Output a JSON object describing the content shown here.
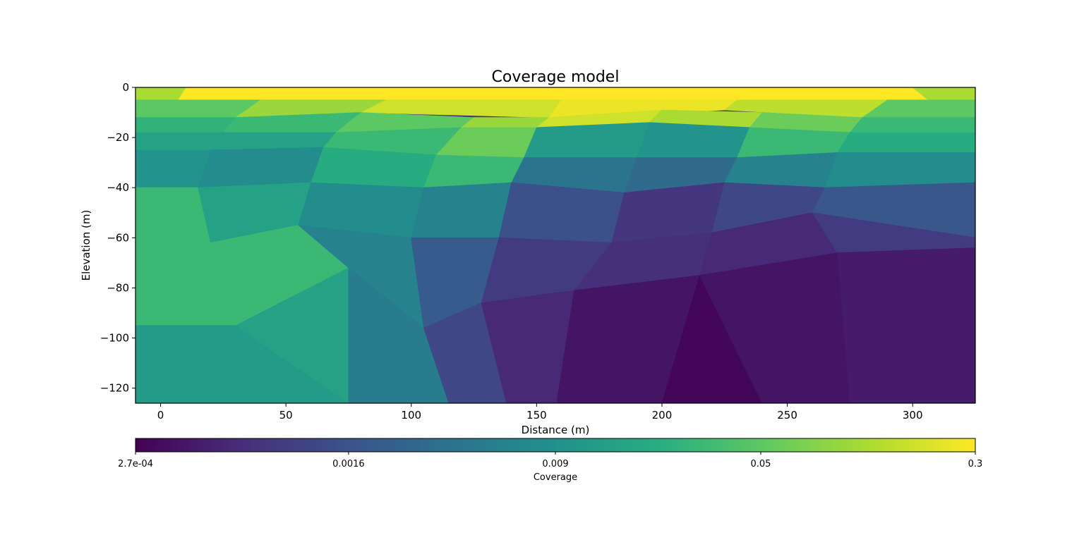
{
  "chart_data": {
    "type": "heatmap",
    "title": "Coverage model",
    "xlabel": "Distance (m)",
    "ylabel": "Elevation (m)",
    "xlim": [
      -10,
      325
    ],
    "ylim": [
      -126,
      0
    ],
    "x_ticks": [
      0,
      50,
      100,
      150,
      200,
      250,
      300
    ],
    "y_ticks": [
      0,
      -20,
      -40,
      -60,
      -80,
      -100,
      -120
    ],
    "y_tick_labels": [
      "0",
      "−20",
      "−40",
      "−60",
      "−80",
      "−100",
      "−120"
    ],
    "grid": false,
    "colormap": "viridis",
    "colorbar": {
      "label": "Coverage",
      "scale": "log",
      "range": [
        0.00027,
        0.3
      ],
      "ticks": [
        0.00027,
        0.0016,
        0.009,
        0.05,
        0.3
      ],
      "tick_labels": [
        "2.7e-04",
        "0.0016",
        "0.009",
        "0.05",
        "0.3"
      ],
      "orientation": "horizontal",
      "placement": "bottom"
    },
    "cells": [
      {
        "x": [
          -10,
          325,
          325,
          -10
        ],
        "y": [
          0,
          0,
          -5,
          -5
        ],
        "value": 0.3
      },
      {
        "x": [
          -10,
          10,
          5,
          -10
        ],
        "y": [
          0,
          0,
          -8,
          -8
        ],
        "value": 0.12
      },
      {
        "x": [
          300,
          325,
          325,
          310
        ],
        "y": [
          0,
          0,
          -8,
          -8
        ],
        "value": 0.12
      },
      {
        "x": [
          -10,
          40,
          30,
          -10
        ],
        "y": [
          -5,
          -5,
          -12,
          -12
        ],
        "value": 0.05
      },
      {
        "x": [
          40,
          90,
          80,
          30
        ],
        "y": [
          -5,
          -5,
          -10,
          -12
        ],
        "value": 0.1
      },
      {
        "x": [
          90,
          160,
          155,
          80
        ],
        "y": [
          -5,
          -5,
          -12,
          -10
        ],
        "value": 0.18
      },
      {
        "x": [
          160,
          230,
          225,
          155
        ],
        "y": [
          -5,
          -5,
          -9,
          -12
        ],
        "value": 0.25
      },
      {
        "x": [
          230,
          290,
          280,
          225
        ],
        "y": [
          -5,
          -5,
          -12,
          -9
        ],
        "value": 0.15
      },
      {
        "x": [
          290,
          325,
          325,
          280
        ],
        "y": [
          -5,
          -5,
          -12,
          -12
        ],
        "value": 0.05
      },
      {
        "x": [
          -10,
          30,
          25,
          -10
        ],
        "y": [
          -12,
          -12,
          -18,
          -18
        ],
        "value": 0.025
      },
      {
        "x": [
          30,
          80,
          70,
          25
        ],
        "y": [
          -12,
          -10,
          -18,
          -18
        ],
        "value": 0.03
      },
      {
        "x": [
          80,
          125,
          120,
          70
        ],
        "y": [
          -10,
          -12,
          -16,
          -18
        ],
        "value": 0.05
      },
      {
        "x": [
          125,
          155,
          150,
          120
        ],
        "y": [
          -12,
          -12,
          -16,
          -16
        ],
        "value": 0.1
      },
      {
        "x": [
          155,
          200,
          195,
          150
        ],
        "y": [
          -12,
          -9,
          -14,
          -16
        ],
        "value": 0.18
      },
      {
        "x": [
          200,
          240,
          235,
          195
        ],
        "y": [
          -9,
          -10,
          -16,
          -14
        ],
        "value": 0.12
      },
      {
        "x": [
          240,
          280,
          275,
          235
        ],
        "y": [
          -10,
          -12,
          -18,
          -16
        ],
        "value": 0.06
      },
      {
        "x": [
          280,
          325,
          325,
          275
        ],
        "y": [
          -12,
          -12,
          -18,
          -18
        ],
        "value": 0.03
      },
      {
        "x": [
          -10,
          25,
          20,
          -10
        ],
        "y": [
          -18,
          -18,
          -25,
          -25
        ],
        "value": 0.015
      },
      {
        "x": [
          25,
          70,
          65,
          20
        ],
        "y": [
          -18,
          -18,
          -24,
          -25
        ],
        "value": 0.015
      },
      {
        "x": [
          70,
          120,
          110,
          65
        ],
        "y": [
          -18,
          -16,
          -27,
          -24
        ],
        "value": 0.03
      },
      {
        "x": [
          120,
          150,
          145,
          110
        ],
        "y": [
          -16,
          -16,
          -28,
          -27
        ],
        "value": 0.06
      },
      {
        "x": [
          150,
          195,
          190,
          145
        ],
        "y": [
          -16,
          -14,
          -28,
          -28
        ],
        "value": 0.012
      },
      {
        "x": [
          195,
          235,
          230,
          190
        ],
        "y": [
          -14,
          -16,
          -28,
          -28
        ],
        "value": 0.01
      },
      {
        "x": [
          235,
          275,
          270,
          230
        ],
        "y": [
          -16,
          -18,
          -26,
          -28
        ],
        "value": 0.03
      },
      {
        "x": [
          275,
          325,
          325,
          270
        ],
        "y": [
          -18,
          -18,
          -26,
          -26
        ],
        "value": 0.02
      },
      {
        "x": [
          -10,
          20,
          15,
          -10
        ],
        "y": [
          -25,
          -25,
          -40,
          -40
        ],
        "value": 0.01
      },
      {
        "x": [
          20,
          65,
          60,
          15
        ],
        "y": [
          -25,
          -24,
          -38,
          -40
        ],
        "value": 0.008
      },
      {
        "x": [
          65,
          110,
          105,
          60
        ],
        "y": [
          -24,
          -27,
          -40,
          -38
        ],
        "value": 0.02
      },
      {
        "x": [
          110,
          145,
          140,
          105
        ],
        "y": [
          -27,
          -28,
          -38,
          -40
        ],
        "value": 0.03
      },
      {
        "x": [
          145,
          190,
          185,
          140
        ],
        "y": [
          -28,
          -28,
          -42,
          -38
        ],
        "value": 0.004
      },
      {
        "x": [
          190,
          230,
          225,
          185
        ],
        "y": [
          -28,
          -28,
          -38,
          -42
        ],
        "value": 0.003
      },
      {
        "x": [
          230,
          270,
          265,
          225
        ],
        "y": [
          -28,
          -26,
          -40,
          -38
        ],
        "value": 0.006
      },
      {
        "x": [
          270,
          325,
          325,
          265
        ],
        "y": [
          -26,
          -26,
          -38,
          -40
        ],
        "value": 0.008
      },
      {
        "x": [
          -10,
          15,
          20,
          -10
        ],
        "y": [
          -40,
          -40,
          -62,
          -62
        ],
        "value": 0.03
      },
      {
        "x": [
          15,
          60,
          55,
          20
        ],
        "y": [
          -40,
          -38,
          -55,
          -62
        ],
        "value": 0.015
      },
      {
        "x": [
          60,
          105,
          100,
          55
        ],
        "y": [
          -38,
          -40,
          -60,
          -55
        ],
        "value": 0.008
      },
      {
        "x": [
          105,
          140,
          135,
          100
        ],
        "y": [
          -40,
          -38,
          -60,
          -60
        ],
        "value": 0.006
      },
      {
        "x": [
          140,
          185,
          180,
          135
        ],
        "y": [
          -38,
          -42,
          -62,
          -60
        ],
        "value": 0.0015
      },
      {
        "x": [
          185,
          225,
          220,
          180
        ],
        "y": [
          -42,
          -38,
          -58,
          -62
        ],
        "value": 0.0008
      },
      {
        "x": [
          225,
          265,
          260,
          220
        ],
        "y": [
          -38,
          -40,
          -50,
          -58
        ],
        "value": 0.0012
      },
      {
        "x": [
          265,
          325,
          325,
          260
        ],
        "y": [
          -40,
          -38,
          -60,
          -50
        ],
        "value": 0.0018
      },
      {
        "x": [
          -10,
          20,
          30,
          -10
        ],
        "y": [
          -62,
          -62,
          -95,
          -95
        ],
        "value": 0.03
      },
      {
        "x": [
          20,
          55,
          75,
          30
        ],
        "y": [
          -62,
          -55,
          -72,
          -95
        ],
        "value": 0.03
      },
      {
        "x": [
          55,
          100,
          105,
          75
        ],
        "y": [
          -55,
          -60,
          -96,
          -72
        ],
        "value": 0.006
      },
      {
        "x": [
          100,
          135,
          128,
          105
        ],
        "y": [
          -60,
          -60,
          -86,
          -96
        ],
        "value": 0.002
      },
      {
        "x": [
          135,
          180,
          165,
          128
        ],
        "y": [
          -60,
          -62,
          -81,
          -86
        ],
        "value": 0.0009
      },
      {
        "x": [
          180,
          220,
          215,
          165
        ],
        "y": [
          -62,
          -58,
          -75,
          -81
        ],
        "value": 0.0007
      },
      {
        "x": [
          220,
          260,
          270,
          215
        ],
        "y": [
          -58,
          -50,
          -66,
          -75
        ],
        "value": 0.0006
      },
      {
        "x": [
          260,
          325,
          325,
          270
        ],
        "y": [
          -50,
          -60,
          -64,
          -66
        ],
        "value": 0.0009
      },
      {
        "x": [
          -10,
          30,
          75,
          -10
        ],
        "y": [
          -95,
          -95,
          -126,
          -126
        ],
        "value": 0.012
      },
      {
        "x": [
          30,
          75,
          75,
          75
        ],
        "y": [
          -95,
          -72,
          -126,
          -126
        ],
        "value": 0.015
      },
      {
        "x": [
          75,
          105,
          115,
          75
        ],
        "y": [
          -72,
          -96,
          -126,
          -126
        ],
        "value": 0.005
      },
      {
        "x": [
          105,
          128,
          138,
          115
        ],
        "y": [
          -96,
          -86,
          -126,
          -126
        ],
        "value": 0.0012
      },
      {
        "x": [
          128,
          165,
          158,
          138
        ],
        "y": [
          -86,
          -81,
          -126,
          -126
        ],
        "value": 0.0006
      },
      {
        "x": [
          165,
          215,
          200,
          158
        ],
        "y": [
          -81,
          -75,
          -126,
          -126
        ],
        "value": 0.0004
      },
      {
        "x": [
          215,
          240,
          200,
          200
        ],
        "y": [
          -75,
          -126,
          -126,
          -126
        ],
        "value": 0.0003
      },
      {
        "x": [
          215,
          270,
          275,
          240
        ],
        "y": [
          -75,
          -66,
          -126,
          -126
        ],
        "value": 0.0004
      },
      {
        "x": [
          270,
          325,
          325,
          275
        ],
        "y": [
          -66,
          -64,
          -126,
          -126
        ],
        "value": 0.00045
      }
    ]
  }
}
